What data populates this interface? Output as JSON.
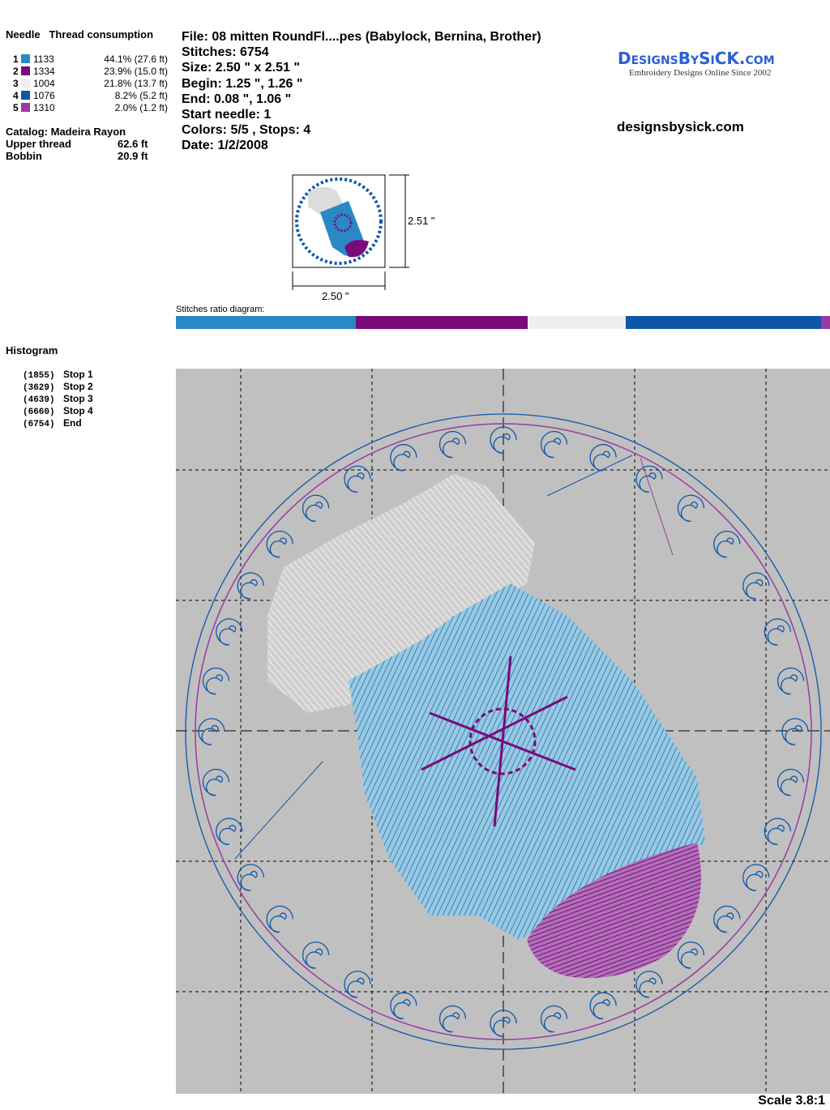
{
  "header": {
    "needle_label": "Needle",
    "thread_label": "Thread consumption"
  },
  "threads": [
    {
      "needle": "1",
      "code": "1133",
      "pct": "44.1% (27.6 ft)",
      "color": "#2a88c4"
    },
    {
      "needle": "2",
      "code": "1334",
      "pct": "23.9% (15.0 ft)",
      "color": "#7a0a7a"
    },
    {
      "needle": "3",
      "code": "1004",
      "pct": "21.8% (13.7 ft)",
      "color": "#eeeeee"
    },
    {
      "needle": "4",
      "code": "1076",
      "pct": "8.2% (5.2 ft)",
      "color": "#0e56a8"
    },
    {
      "needle": "5",
      "code": "1310",
      "pct": "2.0% (1.2 ft)",
      "color": "#9a3aa0"
    }
  ],
  "catalog": "Catalog: Madeira Rayon",
  "upper_thread": {
    "label": "Upper thread",
    "value": "62.6 ft"
  },
  "bobbin": {
    "label": "Bobbin",
    "value": "20.9 ft"
  },
  "info": {
    "file": "File: 08 mitten RoundFl....pes  (Babylock, Bernina, Brother)",
    "stitches": "Stitches: 6754",
    "size": "Size: 2.50 \" x 2.51 \"",
    "begin": "Begin: 1.25 \", 1.26 \"",
    "end": "End: 0.08 \", 1.06 \"",
    "start_needle": "Start needle: 1",
    "colors": "Colors: 5/5 , Stops: 4",
    "date": "Date: 1/2/2008"
  },
  "logo": {
    "text": "DesignsBySiCK.com",
    "tagline": "Embroidery Designs Online Since 2002"
  },
  "website": "designsbysick.com",
  "thumb": {
    "height": "2.51 \"",
    "width": "2.50 \""
  },
  "ratio": {
    "label": "Stitches ratio diagram:",
    "segments": [
      {
        "fraction": 0.275,
        "color": "#2a88c4"
      },
      {
        "fraction": 0.263,
        "color": "#7a0a7a"
      },
      {
        "fraction": 0.15,
        "color": "#eeeeee"
      },
      {
        "fraction": 0.298,
        "color": "#0e56a8"
      },
      {
        "fraction": 0.014,
        "color": "#9a3aa0"
      }
    ]
  },
  "histogram": {
    "title": "Histogram",
    "stops": [
      {
        "count": "(1855)",
        "label": "Stop 1"
      },
      {
        "count": "(3629)",
        "label": "Stop 2"
      },
      {
        "count": "(4639)",
        "label": "Stop 3"
      },
      {
        "count": "(6660)",
        "label": "Stop 4"
      },
      {
        "count": "(6754)",
        "label": "End"
      }
    ]
  },
  "scale": "Scale 3.8:1"
}
